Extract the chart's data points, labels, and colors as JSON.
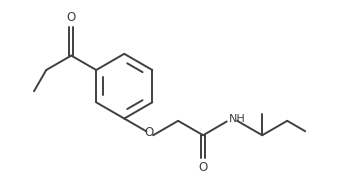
{
  "bg_color": "#ffffff",
  "line_color": "#404040",
  "line_width": 1.4,
  "figsize": [
    3.54,
    1.77
  ],
  "dpi": 100,
  "xlim": [
    0,
    10
  ],
  "ylim": [
    0,
    5
  ]
}
